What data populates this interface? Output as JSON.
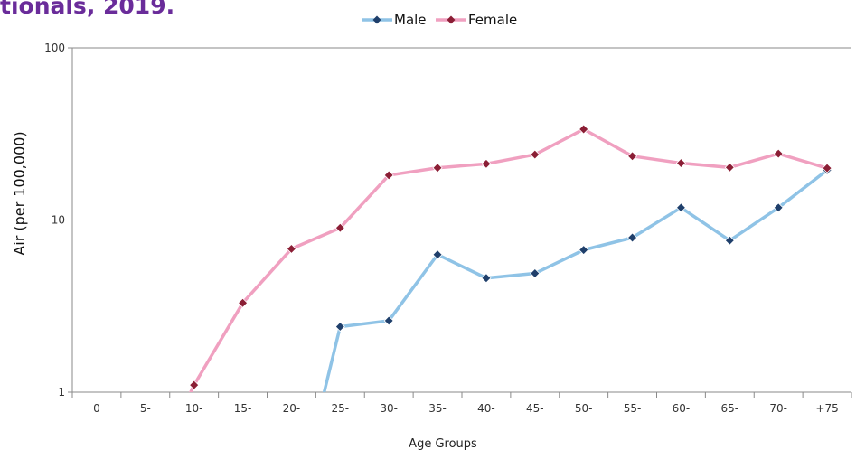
{
  "title_fragment": "tionals, 2019.",
  "chart_data": {
    "type": "line",
    "title": "",
    "xlabel": "Age Groups",
    "ylabel": "Air (per 100,000)",
    "yscale": "log",
    "ylim": [
      1,
      100
    ],
    "yticks": [
      1,
      10,
      100
    ],
    "grid": true,
    "legend_position": "top-center",
    "categories": [
      "0",
      "5-",
      "10-",
      "15-",
      "20-",
      "25-",
      "30-",
      "35-",
      "40-",
      "45-",
      "50-",
      "55-",
      "60-",
      "65-",
      "70-",
      "+75"
    ],
    "series": [
      {
        "name": "Male",
        "color": "#8fc3e6",
        "marker_color": "#1f3f6b",
        "values": [
          null,
          null,
          null,
          null,
          null,
          2.4,
          2.6,
          6.3,
          4.6,
          4.9,
          6.7,
          7.9,
          11.8,
          7.6,
          11.8,
          19.5
        ]
      },
      {
        "name": "Female",
        "color": "#f0a0c0",
        "marker_color": "#8b1e35",
        "values": [
          null,
          null,
          1.1,
          3.3,
          6.8,
          9.0,
          18.2,
          20.1,
          21.2,
          24.0,
          33.7,
          23.5,
          21.4,
          20.2,
          24.3,
          20.0
        ]
      }
    ]
  }
}
